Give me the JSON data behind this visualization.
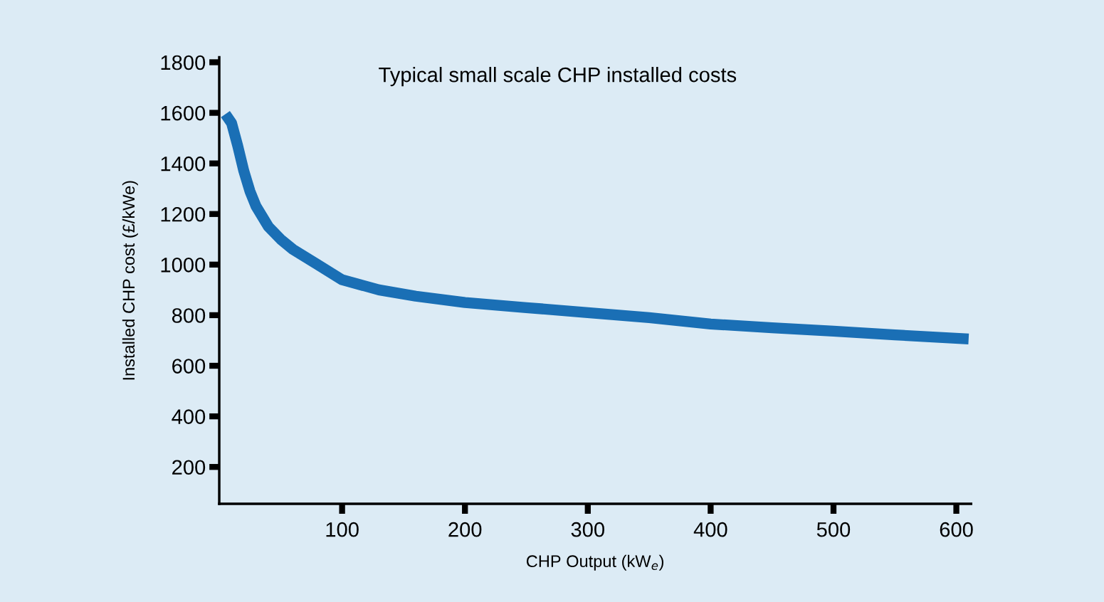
{
  "chart_data": {
    "type": "line",
    "title": "Typical small scale CHP installed costs",
    "xlabel": "CHP Output (kW$_{e}$)",
    "ylabel": "Installed CHP cost (£/kWe)",
    "series": [
      {
        "color": "#1a6fb5",
        "x": [
          5,
          10,
          15,
          20,
          25,
          30,
          40,
          50,
          60,
          80,
          100,
          130,
          160,
          200,
          250,
          300,
          350,
          400,
          450,
          500,
          550,
          610
        ],
        "values": [
          1595,
          1560,
          1470,
          1370,
          1290,
          1230,
          1150,
          1100,
          1060,
          1000,
          940,
          900,
          875,
          850,
          830,
          810,
          790,
          765,
          750,
          737,
          722,
          706
        ]
      }
    ],
    "xlim": [
      0,
      612
    ],
    "xticks": [
      100,
      200,
      300,
      400,
      500,
      600
    ],
    "ylim": [
      54,
      1820
    ],
    "yticks": [
      200,
      400,
      600,
      800,
      1000,
      1200,
      1400,
      1600,
      1800
    ],
    "grid": false,
    "legend": false,
    "marker": "none",
    "line_style": "solid"
  }
}
